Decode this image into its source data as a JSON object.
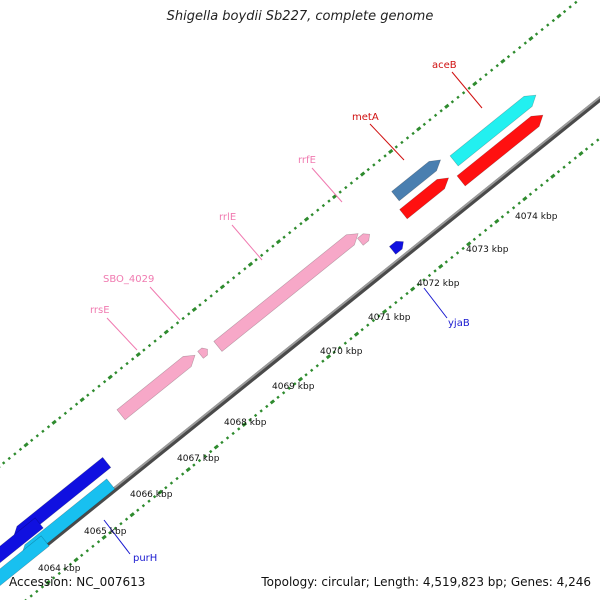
{
  "title": "Shigella boydii Sb227, complete genome",
  "footer": {
    "accession": "Accession: NC_007613",
    "summary": "Topology: circular; Length: 4,519,823 bp; Genes: 4,246"
  },
  "colors": {
    "backbone": "#808080",
    "dots": "#2e8b2e",
    "rna": "#f7a8c8",
    "rna_label": "#f07ab0",
    "cds_fwd_dark": "#1010e0",
    "cds_fwd_light": "#18c0f0",
    "cds_red": "#ff1010",
    "cds_cyan": "#22f0f0",
    "cds_steel": "#4a7fb0",
    "label_blue": "#1a1ad0",
    "label_red": "#d01010"
  },
  "kbp_labels": [
    "4064 kbp",
    "4065 kbp",
    "4066 kbp",
    "4067 kbp",
    "4068 kbp",
    "4069 kbp",
    "4070 kbp",
    "4071 kbp",
    "4072 kbp",
    "4073 kbp",
    "4074 kbp"
  ],
  "gene_labels": {
    "purH": "purH",
    "yjaB": "yjaB",
    "rrsE": "rrsE",
    "SBO_4029": "SBO_4029",
    "rrlE": "rrlE",
    "rrfE": "rrfE",
    "metA": "metA",
    "aceB": "aceB"
  }
}
